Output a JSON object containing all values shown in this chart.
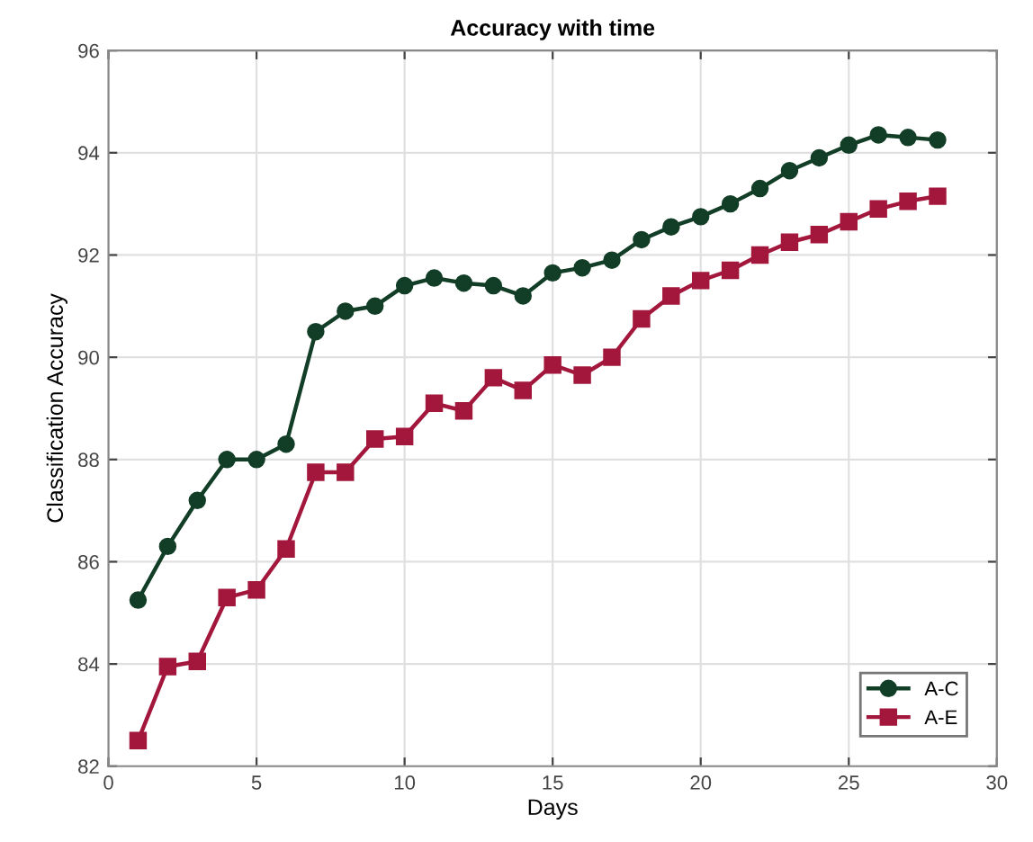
{
  "chart_data": {
    "type": "line",
    "title": "Accuracy with time",
    "xlabel": "Days",
    "ylabel": "Classification Accuracy",
    "x": [
      1,
      2,
      3,
      4,
      5,
      6,
      7,
      8,
      9,
      10,
      11,
      12,
      13,
      14,
      15,
      16,
      17,
      18,
      19,
      20,
      21,
      22,
      23,
      24,
      25,
      26,
      27,
      28
    ],
    "series": [
      {
        "name": "A-C",
        "color": "#123d26",
        "marker": "circle",
        "values": [
          85.25,
          86.3,
          87.2,
          88.0,
          88.0,
          88.3,
          90.5,
          90.9,
          91.0,
          91.4,
          91.55,
          91.45,
          91.4,
          91.2,
          91.65,
          91.75,
          91.9,
          92.3,
          92.55,
          92.75,
          93.0,
          93.3,
          93.65,
          93.9,
          94.15,
          94.35,
          94.3,
          94.25
        ]
      },
      {
        "name": "A-E",
        "color": "#a3173c",
        "marker": "square",
        "values": [
          82.5,
          83.95,
          84.05,
          85.3,
          85.45,
          86.25,
          87.75,
          87.75,
          88.4,
          88.45,
          89.1,
          88.95,
          89.6,
          89.35,
          89.85,
          89.65,
          90.0,
          90.75,
          91.2,
          91.5,
          91.7,
          92.0,
          92.25,
          92.4,
          92.65,
          92.9,
          93.05,
          93.15
        ]
      }
    ],
    "xlim": [
      0,
      30
    ],
    "xticks": [
      0,
      5,
      10,
      15,
      20,
      25,
      30
    ],
    "ylim": [
      82,
      96
    ],
    "yticks": [
      82,
      84,
      86,
      88,
      90,
      92,
      94,
      96
    ],
    "grid": true,
    "legend": "bottom right"
  }
}
